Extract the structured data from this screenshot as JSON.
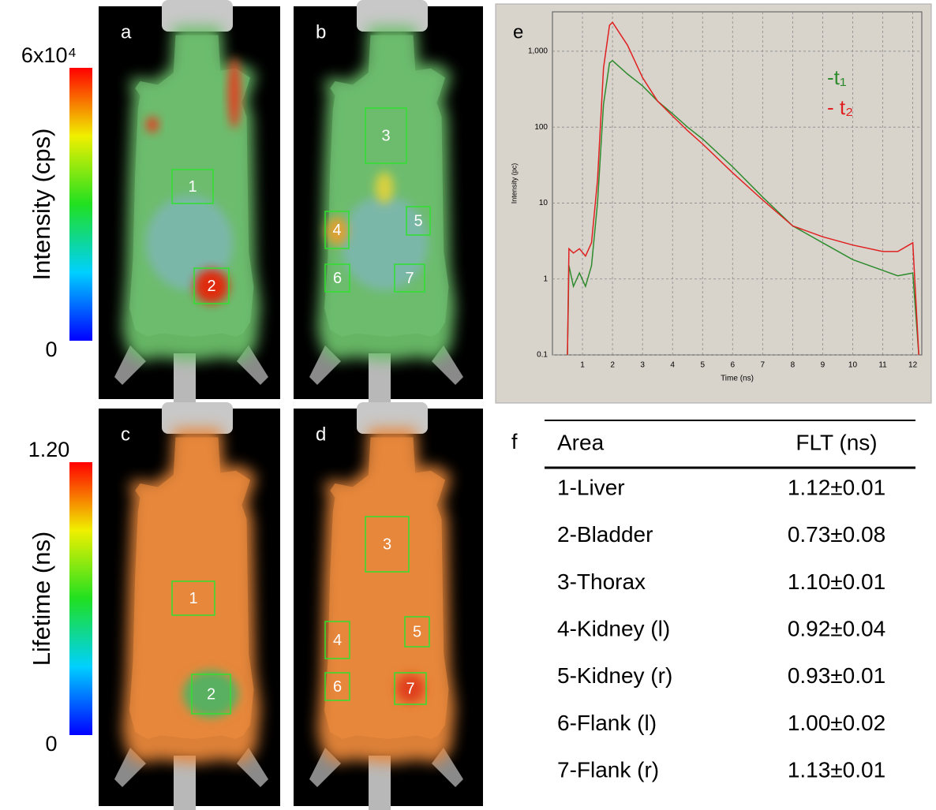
{
  "colorbars": [
    {
      "title": "Intensity (cps)",
      "max_label": "6x10⁴",
      "min_label": "0"
    },
    {
      "title": "Lifetime (ns)",
      "max_label": "1.20",
      "min_label": "0"
    }
  ],
  "panels": [
    {
      "label": "a",
      "rois": [
        "1",
        "2"
      ]
    },
    {
      "label": "b",
      "rois": [
        "3",
        "4",
        "5",
        "6",
        "7"
      ]
    },
    {
      "label": "c",
      "rois": [
        "1",
        "2"
      ]
    },
    {
      "label": "d",
      "rois": [
        "3",
        "4",
        "5",
        "6",
        "7"
      ]
    }
  ],
  "chart_data": {
    "type": "line",
    "label": "e",
    "xlabel": "Time (ns)",
    "ylabel": "Intensity (pc)",
    "log_y": true,
    "grid": true,
    "x": [
      0.5,
      0.55,
      0.7,
      0.9,
      1.1,
      1.3,
      1.5,
      1.7,
      1.9,
      2.0,
      2.5,
      3,
      3.5,
      4,
      4.5,
      5,
      6,
      7,
      8,
      9,
      10,
      11,
      11.5,
      12,
      12.2
    ],
    "series": [
      {
        "name": "-t₁",
        "color": "#2e8b2e",
        "values": [
          0.1,
          1.5,
          0.8,
          1.2,
          0.8,
          1.5,
          10,
          200,
          700,
          750,
          500,
          350,
          220,
          150,
          100,
          70,
          30,
          12,
          5,
          3,
          1.8,
          1.3,
          1.1,
          1.2,
          0.1
        ]
      },
      {
        "name": "- t₂",
        "color": "#e02020",
        "values": [
          0.1,
          2.5,
          2.2,
          2.5,
          2,
          3,
          20,
          600,
          2200,
          2400,
          1200,
          450,
          220,
          140,
          90,
          60,
          25,
          11,
          5,
          3.6,
          2.8,
          2.3,
          2.3,
          3,
          0.1
        ]
      }
    ],
    "xlim": [
      0,
      12.3
    ],
    "ylim": [
      0.1,
      3300
    ],
    "xticks": [
      1,
      2,
      3,
      4,
      5,
      6,
      7,
      8,
      9,
      10,
      11,
      12
    ],
    "yticks": [
      {
        "value": 1000,
        "label": "1,000"
      },
      100,
      10,
      1,
      0.1
    ]
  },
  "table": {
    "label": "f",
    "header": [
      "Area",
      "FLT (ns)"
    ],
    "rows": [
      [
        "1-Liver",
        "1.12±0.01"
      ],
      [
        "2-Bladder",
        "0.73±0.08"
      ],
      [
        "3-Thorax",
        "1.10±0.01"
      ],
      [
        "4-Kidney (l)",
        "0.92±0.04"
      ],
      [
        "5-Kidney (r)",
        "0.93±0.01"
      ],
      [
        "6-Flank (l)",
        "1.00±0.02"
      ],
      [
        "7-Flank (r)",
        "1.13±0.01"
      ]
    ]
  }
}
